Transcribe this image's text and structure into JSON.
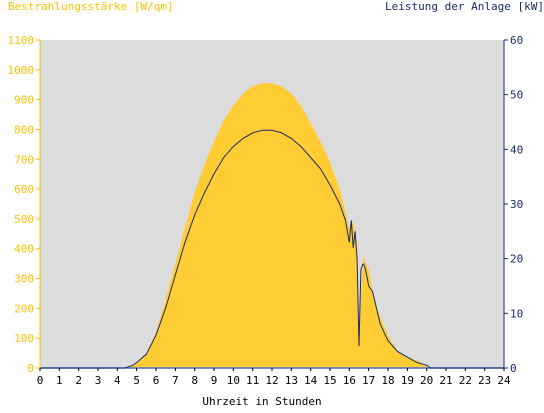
{
  "chart_data": {
    "type": "area",
    "title_left": "Bestrahlungsstärke [W/qm]",
    "title_right": "Leistung der Anlage [kW]",
    "xlabel": "Uhrzeit in Stunden",
    "xlim": [
      0,
      24
    ],
    "x_ticks": [
      "0",
      "1",
      "2",
      "3",
      "4",
      "5",
      "6",
      "7",
      "8",
      "9",
      "10",
      "11",
      "12",
      "13",
      "14",
      "15",
      "16",
      "17",
      "18",
      "19",
      "20",
      "21",
      "22",
      "23",
      "24"
    ],
    "y_left": {
      "lim": [
        0,
        1100
      ],
      "ticks": [
        "0",
        "100",
        "200",
        "300",
        "400",
        "500",
        "600",
        "700",
        "800",
        "900",
        "1000",
        "1100"
      ]
    },
    "y_right": {
      "lim": [
        0,
        60
      ],
      "ticks": [
        "0",
        "10",
        "20",
        "30",
        "40",
        "50",
        "60"
      ]
    },
    "grid": false,
    "colors": {
      "plot_bg": "#dcdcdc",
      "irradiance": "#ffcc33",
      "power": "#1a2a6c",
      "left_axis": "#ffc000",
      "right_axis": "#1a2a6c",
      "zero_line": "#4a6fd0"
    },
    "series": [
      {
        "axis": "left",
        "kind": "area",
        "x": [
          0,
          4.3,
          4.6,
          5,
          5.5,
          6,
          6.5,
          7,
          7.5,
          8,
          8.5,
          9,
          9.5,
          10,
          10.5,
          11,
          11.5,
          12,
          12.5,
          13,
          13.5,
          14,
          14.5,
          15,
          15.5,
          15.8,
          16.0,
          16.2,
          16.4,
          16.5,
          16.6,
          16.7,
          16.75,
          16.8,
          17.0,
          17.2,
          17.4,
          17.6,
          18,
          18.5,
          19,
          19.5,
          20,
          20.3,
          24
        ],
        "y": [
          0,
          0,
          5,
          15,
          50,
          120,
          230,
          350,
          470,
          590,
          680,
          760,
          830,
          880,
          920,
          945,
          955,
          955,
          945,
          920,
          880,
          820,
          760,
          690,
          600,
          520,
          470,
          490,
          420,
          80,
          240,
          340,
          380,
          360,
          330,
          260,
          210,
          170,
          110,
          55,
          35,
          25,
          5,
          0,
          0
        ]
      },
      {
        "axis": "right",
        "kind": "line",
        "x": [
          0,
          4.4,
          4.8,
          5,
          5.5,
          6,
          6.5,
          7,
          7.5,
          8,
          8.5,
          9,
          9.5,
          10,
          10.5,
          11,
          11.5,
          12,
          12.5,
          13,
          13.5,
          14,
          14.5,
          15,
          15.5,
          15.8,
          16.0,
          16.1,
          16.2,
          16.3,
          16.4,
          16.5,
          16.6,
          16.7,
          16.75,
          16.8,
          16.9,
          17.0,
          17.2,
          17.4,
          17.6,
          18,
          18.5,
          19,
          19.5,
          20,
          20.2,
          24
        ],
        "y": [
          0,
          0,
          0.5,
          1,
          2.5,
          6,
          11,
          17,
          23,
          28,
          32,
          35.5,
          38.5,
          40.5,
          42,
          43,
          43.5,
          43.5,
          43,
          42,
          40.5,
          38.5,
          36.5,
          33.5,
          30,
          27,
          23,
          27,
          22,
          25,
          20,
          4,
          18,
          19,
          19,
          18.5,
          17,
          15,
          14,
          11,
          8,
          5,
          3,
          2,
          1,
          0.5,
          0,
          0
        ]
      }
    ]
  }
}
